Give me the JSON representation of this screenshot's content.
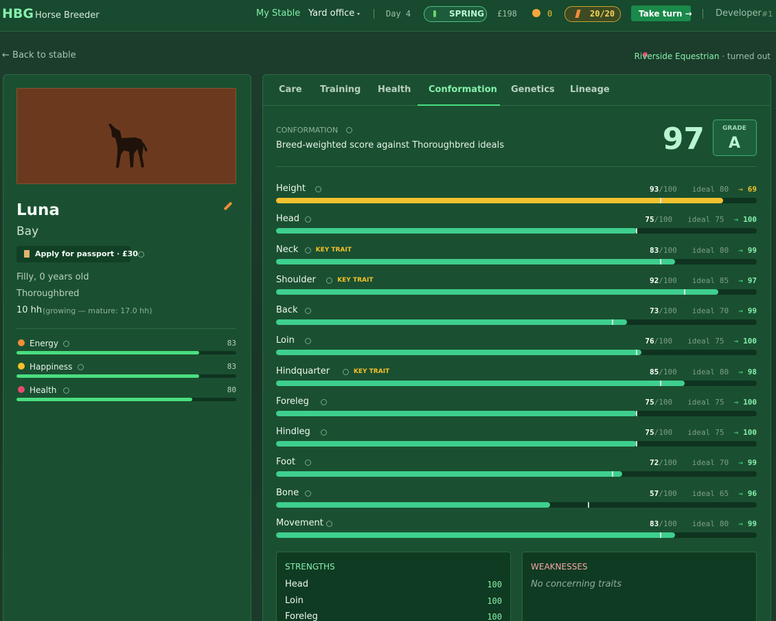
{
  "header": {
    "logo": "HBG",
    "app_name": "Horse Breeder",
    "nav": [
      "My Stable",
      "Yard office"
    ],
    "day": "Day 4",
    "season": "SPRING",
    "money": "£198",
    "coins": "0",
    "energy": "20/20",
    "take_turn": "Take turn →",
    "user": "Developer",
    "user_id": "#1"
  },
  "location_bar": {
    "back": "← Back to stable",
    "location": "Riverside Equestrian",
    "status": "· turned out"
  },
  "horse": {
    "name": "Luna",
    "coat": "Bay",
    "passport": "Apply for passport · £30",
    "age": "Filly, 0 years old",
    "breed": "Thoroughbred",
    "height": "10 hh",
    "height_note": "(growing — mature: 17.0 hh)",
    "stats": [
      {
        "label": "Energy",
        "value": 83,
        "color": "#f28c38"
      },
      {
        "label": "Happiness",
        "value": 83,
        "color": "#f5c02a"
      },
      {
        "label": "Health",
        "value": 80,
        "color": "#e84a6f"
      }
    ]
  },
  "tabs": {
    "items": [
      "Care",
      "Training",
      "Health",
      "Conformation",
      "Genetics",
      "Lineage"
    ],
    "active": 3
  },
  "conformation": {
    "heading": "CONFORMATION",
    "description": "Breed-weighted score against Thoroughbred ideals",
    "score": 97,
    "grade_label": "GRADE",
    "grade": "A",
    "scale_max": 100,
    "scale_label": "/100",
    "ideal_label": "ideal",
    "arrow": "→",
    "key_trait_label": "KEY TRAIT",
    "traits": [
      {
        "name": "Height",
        "score": 93,
        "ideal": 80,
        "projected": 69,
        "key": false,
        "color": "#f2c12e"
      },
      {
        "name": "Head",
        "score": 75,
        "ideal": 75,
        "projected": 100,
        "key": false,
        "color": "#3ecf8e"
      },
      {
        "name": "Neck",
        "score": 83,
        "ideal": 80,
        "projected": 99,
        "key": true,
        "color": "#3ecf8e"
      },
      {
        "name": "Shoulder",
        "score": 92,
        "ideal": 85,
        "projected": 97,
        "key": true,
        "color": "#3ecf8e"
      },
      {
        "name": "Back",
        "score": 73,
        "ideal": 70,
        "projected": 99,
        "key": false,
        "color": "#3ecf8e"
      },
      {
        "name": "Loin",
        "score": 76,
        "ideal": 75,
        "projected": 100,
        "key": false,
        "color": "#3ecf8e"
      },
      {
        "name": "Hindquarter",
        "score": 85,
        "ideal": 80,
        "projected": 98,
        "key": true,
        "color": "#3ecf8e"
      },
      {
        "name": "Foreleg",
        "score": 75,
        "ideal": 75,
        "projected": 100,
        "key": false,
        "color": "#3ecf8e"
      },
      {
        "name": "Hindleg",
        "score": 75,
        "ideal": 75,
        "projected": 100,
        "key": false,
        "color": "#3ecf8e"
      },
      {
        "name": "Foot",
        "score": 72,
        "ideal": 70,
        "projected": 99,
        "key": false,
        "color": "#3ecf8e"
      },
      {
        "name": "Bone",
        "score": 57,
        "ideal": 65,
        "projected": 96,
        "key": false,
        "color": "#3ecf8e"
      },
      {
        "name": "Movement",
        "score": 83,
        "ideal": 80,
        "projected": 99,
        "key": false,
        "color": "#3ecf8e"
      }
    ]
  },
  "strengths": {
    "title": "STRENGTHS",
    "items": [
      {
        "name": "Head",
        "value": 100
      },
      {
        "name": "Loin",
        "value": 100
      },
      {
        "name": "Foreleg",
        "value": 100
      }
    ]
  },
  "weaknesses": {
    "title": "WEAKNESSES",
    "empty": "No concerning traits"
  }
}
